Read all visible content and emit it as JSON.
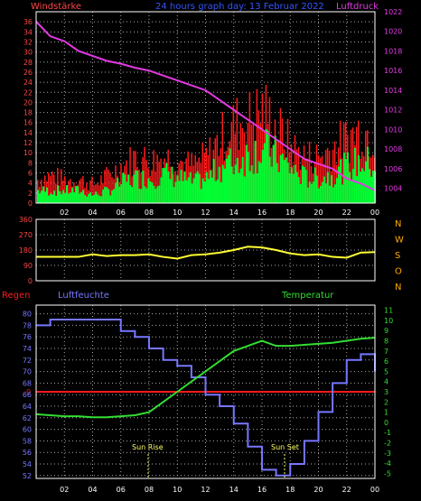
{
  "colors": {
    "background": "#000000",
    "frame": "#ffffff",
    "grid": "#aaaaaa",
    "wind_gust": "#ff1a1a",
    "wind_avg": "#00ff33",
    "pressure": "#e33ae3",
    "direction": "#ffff33",
    "humidity": "#7777ff",
    "temperature": "#33dd33",
    "rain": "#ff1a1a",
    "wind_axis_text": "#ff4444",
    "pressure_axis_text": "#e33ae3",
    "compass_text": "#ffaa00",
    "temp_axis_text": "#33dd33",
    "humidity_axis_text": "#7777ff",
    "title_text": "#3355ff",
    "sun_text": "#ffff66",
    "time_axis_text": "#ffffff"
  },
  "header": {
    "title": "24 hours graph day:  13 Februar 2022",
    "left_label": "Windstärke",
    "right_label": "Luftdruck"
  },
  "time_axis": {
    "ticks": [
      "02",
      "04",
      "06",
      "08",
      "10",
      "12",
      "14",
      "16",
      "18",
      "20",
      "22",
      "00"
    ]
  },
  "panel2": {
    "compass_labels": [
      "N",
      "W",
      "S",
      "O",
      "N"
    ]
  },
  "panel3": {
    "rain_label": "Regen",
    "humidity_label": "Luftfeuchte",
    "temperature_label": "Temperatur",
    "rain_zero": "0",
    "sun_rise_label": "Sun Rise",
    "sun_set_label": "Sun Set"
  },
  "chart_data": [
    {
      "type": "bar",
      "title": "24 hours graph day:  13 Februar 2022",
      "x": [
        0,
        1,
        2,
        3,
        4,
        5,
        6,
        7,
        8,
        9,
        10,
        11,
        12,
        13,
        14,
        15,
        16,
        17,
        18,
        19,
        20,
        21,
        22,
        23,
        24
      ],
      "x_tick_labels": [
        "02",
        "04",
        "06",
        "08",
        "10",
        "12",
        "14",
        "16",
        "18",
        "20",
        "22",
        "00"
      ],
      "y_left": {
        "label": "Windstärke",
        "range": [
          0,
          38
        ],
        "tick_labels": [
          "0",
          "2",
          "4",
          "6",
          "8",
          "10",
          "12",
          "14",
          "16",
          "18",
          "20",
          "22",
          "24",
          "26",
          "28",
          "30",
          "32",
          "34",
          "36"
        ]
      },
      "y_right": {
        "label": "Luftdruck",
        "range": [
          1002.5,
          1022
        ],
        "tick_labels": [
          "1004",
          "1006",
          "1008",
          "1010",
          "1012",
          "1014",
          "1016",
          "1018",
          "1020",
          "1022"
        ]
      },
      "series": [
        {
          "name": "Windstärke",
          "type": "bar",
          "values": [
            5,
            6,
            5,
            5,
            4,
            6,
            8,
            10,
            9,
            10,
            9,
            8,
            10,
            14,
            17,
            18,
            20,
            16,
            12,
            10,
            10,
            12,
            14,
            16,
            14
          ]
        },
        {
          "name": "Windstärke",
          "type": "bar",
          "values": [
            3,
            3,
            3,
            3,
            2,
            3,
            5,
            6,
            6,
            7,
            6,
            5,
            6,
            9,
            10,
            12,
            13,
            11,
            8,
            6,
            6,
            7,
            9,
            10,
            9
          ]
        },
        {
          "name": "Luftdruck",
          "type": "line",
          "values": [
            1021,
            1019.5,
            1019,
            1018,
            1017.5,
            1017,
            1016.7,
            1016.3,
            1016,
            1015.5,
            1015,
            1014.5,
            1014,
            1013,
            1012,
            1011,
            1010,
            1009,
            1008,
            1007,
            1006.5,
            1006,
            1005,
            1004.5,
            1003.8
          ]
        }
      ],
      "grid": true
    },
    {
      "type": "line",
      "x": [
        0,
        1,
        2,
        3,
        4,
        5,
        6,
        7,
        8,
        9,
        10,
        11,
        12,
        13,
        14,
        15,
        16,
        17,
        18,
        19,
        20,
        21,
        22,
        23,
        24
      ],
      "x_tick_labels": [
        "02",
        "04",
        "06",
        "08",
        "10",
        "12",
        "14",
        "16",
        "18",
        "20",
        "22",
        "00"
      ],
      "y_left": {
        "range": [
          0,
          360
        ],
        "tick_labels": [
          "0",
          "90",
          "180",
          "270",
          "360"
        ]
      },
      "y_right": {
        "tick_labels": [
          "N",
          "W",
          "S",
          "O",
          "N"
        ]
      },
      "series": [
        {
          "name": "",
          "values": [
            140,
            140,
            140,
            140,
            155,
            145,
            150,
            150,
            155,
            140,
            130,
            150,
            155,
            165,
            180,
            200,
            195,
            180,
            160,
            150,
            155,
            140,
            135,
            165,
            168
          ]
        }
      ],
      "grid": true
    },
    {
      "type": "line",
      "x": [
        0,
        1,
        2,
        3,
        4,
        5,
        6,
        7,
        8,
        9,
        10,
        11,
        12,
        13,
        14,
        15,
        16,
        17,
        18,
        19,
        20,
        21,
        22,
        23,
        24
      ],
      "x_tick_labels": [
        "02",
        "04",
        "06",
        "08",
        "10",
        "12",
        "14",
        "16",
        "18",
        "20",
        "22",
        "00"
      ],
      "y_left": {
        "label": "Luftfeuchte",
        "range": [
          51.5,
          81.5
        ],
        "tick_labels": [
          "52",
          "54",
          "56",
          "58",
          "60",
          "62",
          "64",
          "66",
          "68",
          "70",
          "72",
          "74",
          "76",
          "78",
          "80"
        ]
      },
      "y_right": {
        "label": "Temperatur",
        "range": [
          -5.5,
          11.5
        ],
        "tick_labels": [
          "-5",
          "-4",
          "-3",
          "-2",
          "-1",
          "0",
          "1",
          "2",
          "3",
          "4",
          "5",
          "6",
          "7",
          "8",
          "9",
          "10",
          "11"
        ]
      },
      "series": [
        {
          "name": "Luftfeuchte",
          "values": [
            78,
            79,
            79,
            79,
            79,
            79,
            77,
            76,
            74,
            72,
            71,
            69,
            66,
            64,
            61,
            57,
            53,
            52,
            54,
            58,
            63,
            68,
            72,
            73,
            70
          ]
        },
        {
          "name": "Temperatur",
          "values": [
            0.8,
            0.7,
            0.6,
            0.6,
            0.5,
            0.5,
            0.6,
            0.7,
            1.0,
            2.0,
            3.0,
            4.0,
            5.0,
            6.0,
            7.0,
            7.5,
            8.0,
            7.5,
            7.5,
            7.6,
            7.7,
            7.8,
            8.0,
            8.2,
            8.3
          ]
        },
        {
          "name": "Regen",
          "values": [
            0,
            0,
            0,
            0,
            0,
            0,
            0,
            0,
            0,
            0,
            0,
            0,
            0,
            0,
            0,
            0,
            0,
            0,
            0,
            0,
            0,
            0,
            0,
            0,
            0
          ]
        }
      ],
      "annotations": [
        "Sun Rise",
        "Sun Set"
      ],
      "grid": true
    }
  ]
}
